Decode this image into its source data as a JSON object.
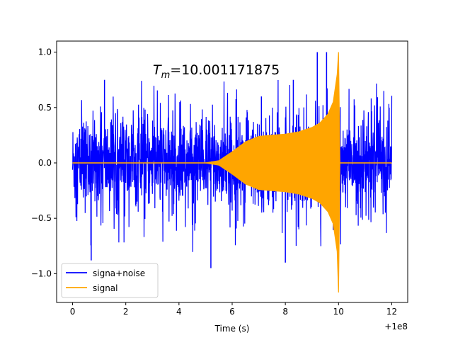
{
  "chart_data": {
    "type": "line",
    "xlabel": "Time (s)",
    "ylabel": "",
    "x_offset_label": "+1e8",
    "xlim": [
      -0.6,
      12.6
    ],
    "ylim": [
      -1.26,
      1.1
    ],
    "x_ticks": [
      0,
      2,
      4,
      6,
      8,
      10,
      12
    ],
    "x_tick_labels": [
      "0",
      "2",
      "4",
      "6",
      "8",
      "10",
      "12"
    ],
    "y_ticks": [
      -1.0,
      -0.5,
      0.0,
      0.5,
      1.0
    ],
    "y_tick_labels": [
      "−1.0",
      "−0.5",
      "0.0",
      "0.5",
      "1.0"
    ],
    "grid": false,
    "legend_position": "lower-left",
    "annotation": {
      "main": "T",
      "subscript": "m",
      "value": "=10.001171875"
    },
    "series": [
      {
        "name": "signa+noise",
        "color": "#0000ff",
        "x_range": [
          0,
          12
        ],
        "peak_max": 1.0,
        "peak_min": -0.95,
        "typical_envelope": 0.45
      },
      {
        "name": "signal",
        "color": "#ffa500",
        "envelope": {
          "x": [
            0,
            5.0,
            5.5,
            6.0,
            6.5,
            7.0,
            7.5,
            8.0,
            8.5,
            9.0,
            9.3,
            9.6,
            9.8,
            9.95,
            10.0,
            10.05,
            12.0
          ],
          "upper": [
            0,
            0,
            0.02,
            0.1,
            0.19,
            0.24,
            0.25,
            0.26,
            0.28,
            0.32,
            0.36,
            0.44,
            0.55,
            0.8,
            1.0,
            0.0,
            0.0
          ],
          "lower": [
            0,
            0,
            -0.02,
            -0.1,
            -0.19,
            -0.24,
            -0.25,
            -0.26,
            -0.28,
            -0.32,
            -0.36,
            -0.44,
            -0.55,
            -0.8,
            -1.17,
            0.0,
            0.0
          ]
        }
      }
    ]
  }
}
